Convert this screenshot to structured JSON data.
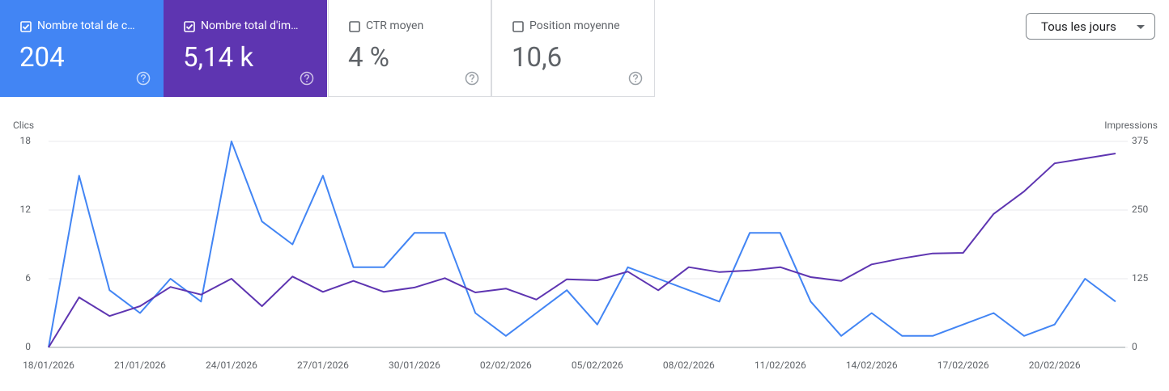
{
  "metrics": [
    {
      "label": "Nombre total de c…",
      "value": "204",
      "checked": true
    },
    {
      "label": "Nombre total d'im…",
      "value": "5,14 k",
      "checked": true
    },
    {
      "label": "CTR moyen",
      "value": "4 %",
      "checked": false
    },
    {
      "label": "Position moyenne",
      "value": "10,6",
      "checked": false
    }
  ],
  "dropdown": {
    "label": "Tous les jours"
  },
  "chart_data": {
    "type": "line",
    "ylabel": "Clics",
    "y2label": "Impressions",
    "categories": [
      "18/01/2026",
      null,
      null,
      "21/01/2026",
      null,
      null,
      "24/01/2026",
      null,
      null,
      "27/01/2026",
      null,
      null,
      "30/01/2026",
      null,
      null,
      "02/02/2026",
      null,
      null,
      "05/02/2026",
      null,
      null,
      "08/02/2026",
      null,
      null,
      "11/02/2026",
      null,
      null,
      "14/02/2026",
      null,
      null,
      "17/02/2026",
      null,
      null,
      "20/02/2026",
      null,
      null
    ],
    "series": [
      {
        "color": "#4285f4",
        "values": [
          0,
          15,
          5,
          3,
          6,
          4,
          18,
          11,
          9,
          15,
          7,
          7,
          10,
          10,
          3,
          1,
          3,
          5,
          2,
          7,
          6,
          5,
          4,
          10,
          10,
          4,
          1,
          3,
          1,
          1,
          2,
          3,
          1,
          2,
          6,
          4
        ]
      },
      {
        "color": "#5e35b1",
        "axis": "y2",
        "values": [
          0,
          91,
          57,
          75,
          110,
          96,
          125,
          75,
          129,
          101,
          121,
          101,
          109,
          126,
          100,
          107,
          87,
          124,
          122,
          138,
          104,
          146,
          137,
          140,
          146,
          128,
          121,
          151,
          162,
          171,
          172,
          243,
          284,
          335,
          344,
          353
        ]
      }
    ],
    "ylim": [
      0,
      18
    ],
    "yticks": [
      0,
      6,
      12,
      18
    ],
    "y2lim": [
      0,
      375
    ],
    "y2ticks": [
      0,
      125,
      250,
      375
    ],
    "grid": true
  }
}
